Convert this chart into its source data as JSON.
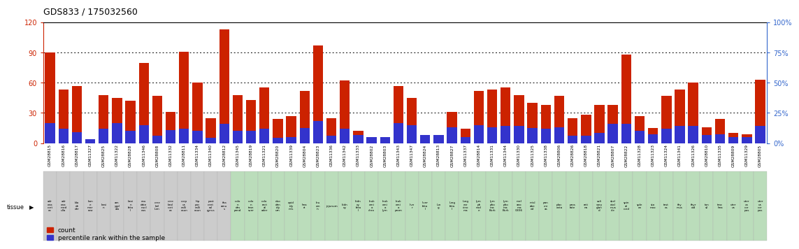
{
  "title": "GDS833 / 175032560",
  "samples": [
    "GSM28815",
    "GSM28816",
    "GSM28817",
    "GSM11327",
    "GSM28825",
    "GSM11322",
    "GSM28828",
    "GSM11346",
    "GSM28808",
    "GSM11332",
    "GSM28811",
    "GSM11334",
    "GSM11340",
    "GSM28812",
    "GSM11345",
    "GSM28819",
    "GSM11321",
    "GSM28820",
    "GSM11339",
    "GSM28804",
    "GSM28823",
    "GSM11336",
    "GSM11342",
    "GSM11333",
    "GSM28802",
    "GSM28803",
    "GSM11343",
    "GSM11347",
    "GSM28824",
    "GSM28813",
    "GSM28827",
    "GSM11337",
    "GSM28814",
    "GSM11331",
    "GSM11344",
    "GSM11330",
    "GSM11325",
    "GSM11338",
    "GSM28806",
    "GSM28826",
    "GSM28818",
    "GSM28821",
    "GSM28807",
    "GSM28822",
    "GSM11328",
    "GSM11323",
    "GSM11324",
    "GSM11341",
    "GSM11326",
    "GSM28810",
    "GSM11335",
    "GSM28809",
    "GSM11329",
    "GSM28805"
  ],
  "tissue_labels": [
    "adr\nena\ncort\nex",
    "adr\nena\nmed\nulla",
    "bla\nde\nder",
    "bon\ne\nmar\nrow",
    "brai\nn",
    "am\nygd\nala",
    "brai\nn\nfeta\nl",
    "cau\ndate\nnucl\neus",
    "cere\nbel\nlum",
    "cere\nbral\ncort\nex",
    "corp\nus\ncalli\nosun",
    "hip\npoc\ncalli\nosun",
    "post\ncent\nral\ngyrus",
    "tha\namu\ns",
    "colo\nn\ndes\npend",
    "colo\nn\ntran\nsver",
    "colo\nrect\nal\nader",
    "duo\nden\nidy\num",
    "epid\nidy\nmis",
    "hea\nrt",
    "leu\nem\nin",
    "jejunum",
    "kidn\ney",
    "kidn\ney\nfeta\nl",
    "leuk\nemi\na\nchro",
    "leuk\nemi\na\nlym",
    "leuk\nemi\na\nprom",
    "live\nr",
    "liver\nfeta\nl",
    "lun\ng",
    "lung\nfeta\nl",
    "lung\ncar\ncino\nma",
    "lym\nph\nnod\ne",
    "lym\npho\nma\nBurk",
    "lym\npho\nma\nBurk",
    "mel\nano\nma\nG336",
    "misl\nabe\ned",
    "pan\ncre\nas",
    "plac\nenta",
    "pros\ntate",
    "reti\nna",
    "sali\nvary\nglan\nd",
    "skel\netal\nmus\ncle",
    "spin\nal\ncord",
    "sple\nen",
    "sto\nmac",
    "test\nes",
    "thy\nmus",
    "thyr\noid",
    "ton\nsil",
    "trac\nhea",
    "uter\nus",
    "uter\nus\ncor\npus",
    "uter\nus\ncor\npus"
  ],
  "count_values": [
    90,
    53,
    57,
    3,
    48,
    45,
    42,
    80,
    47,
    31,
    91,
    60,
    25,
    113,
    48,
    43,
    55,
    24,
    27,
    52,
    97,
    25,
    62,
    12,
    5,
    6,
    57,
    45,
    4,
    4,
    31,
    14,
    52,
    53,
    55,
    48,
    40,
    38,
    47,
    25,
    28,
    38,
    38,
    88,
    27,
    15,
    47,
    53,
    60,
    16,
    24,
    10,
    9,
    63
  ],
  "percentile_values": [
    20,
    14,
    11,
    4,
    14,
    20,
    12,
    18,
    7,
    13,
    14,
    12,
    5,
    19,
    12,
    12,
    14,
    5,
    6,
    15,
    22,
    7,
    14,
    8,
    6,
    6,
    20,
    18,
    8,
    8,
    16,
    6,
    18,
    16,
    17,
    17,
    15,
    14,
    16,
    7,
    7,
    10,
    19,
    19,
    12,
    9,
    14,
    17,
    17,
    8,
    9,
    6,
    6,
    17
  ],
  "tissue_is_gray": [
    true,
    true,
    true,
    true,
    true,
    true,
    true,
    true,
    true,
    true,
    true,
    true,
    true,
    true,
    false,
    false,
    false,
    false,
    false,
    false,
    false,
    false,
    false,
    false,
    false,
    false,
    false,
    false,
    false,
    false,
    false,
    false,
    false,
    false,
    false,
    false,
    false,
    false,
    false,
    false,
    false,
    false,
    false,
    false,
    false,
    false,
    false,
    false,
    false,
    false,
    false,
    false,
    false,
    false
  ],
  "ylim_left": [
    0,
    120
  ],
  "ylim_right": [
    0,
    100
  ],
  "yticks_left": [
    0,
    30,
    60,
    90,
    120
  ],
  "yticks_right": [
    0,
    25,
    50,
    75,
    100
  ],
  "bar_color_count": "#cc2200",
  "bar_color_pct": "#3333cc",
  "bg_color_gray": "#cccccc",
  "bg_color_green": "#bbddbb",
  "title_fontsize": 9,
  "axis_label_color_left": "#cc2200",
  "axis_label_color_right": "#3366cc",
  "hline_values": [
    30,
    60,
    90
  ]
}
